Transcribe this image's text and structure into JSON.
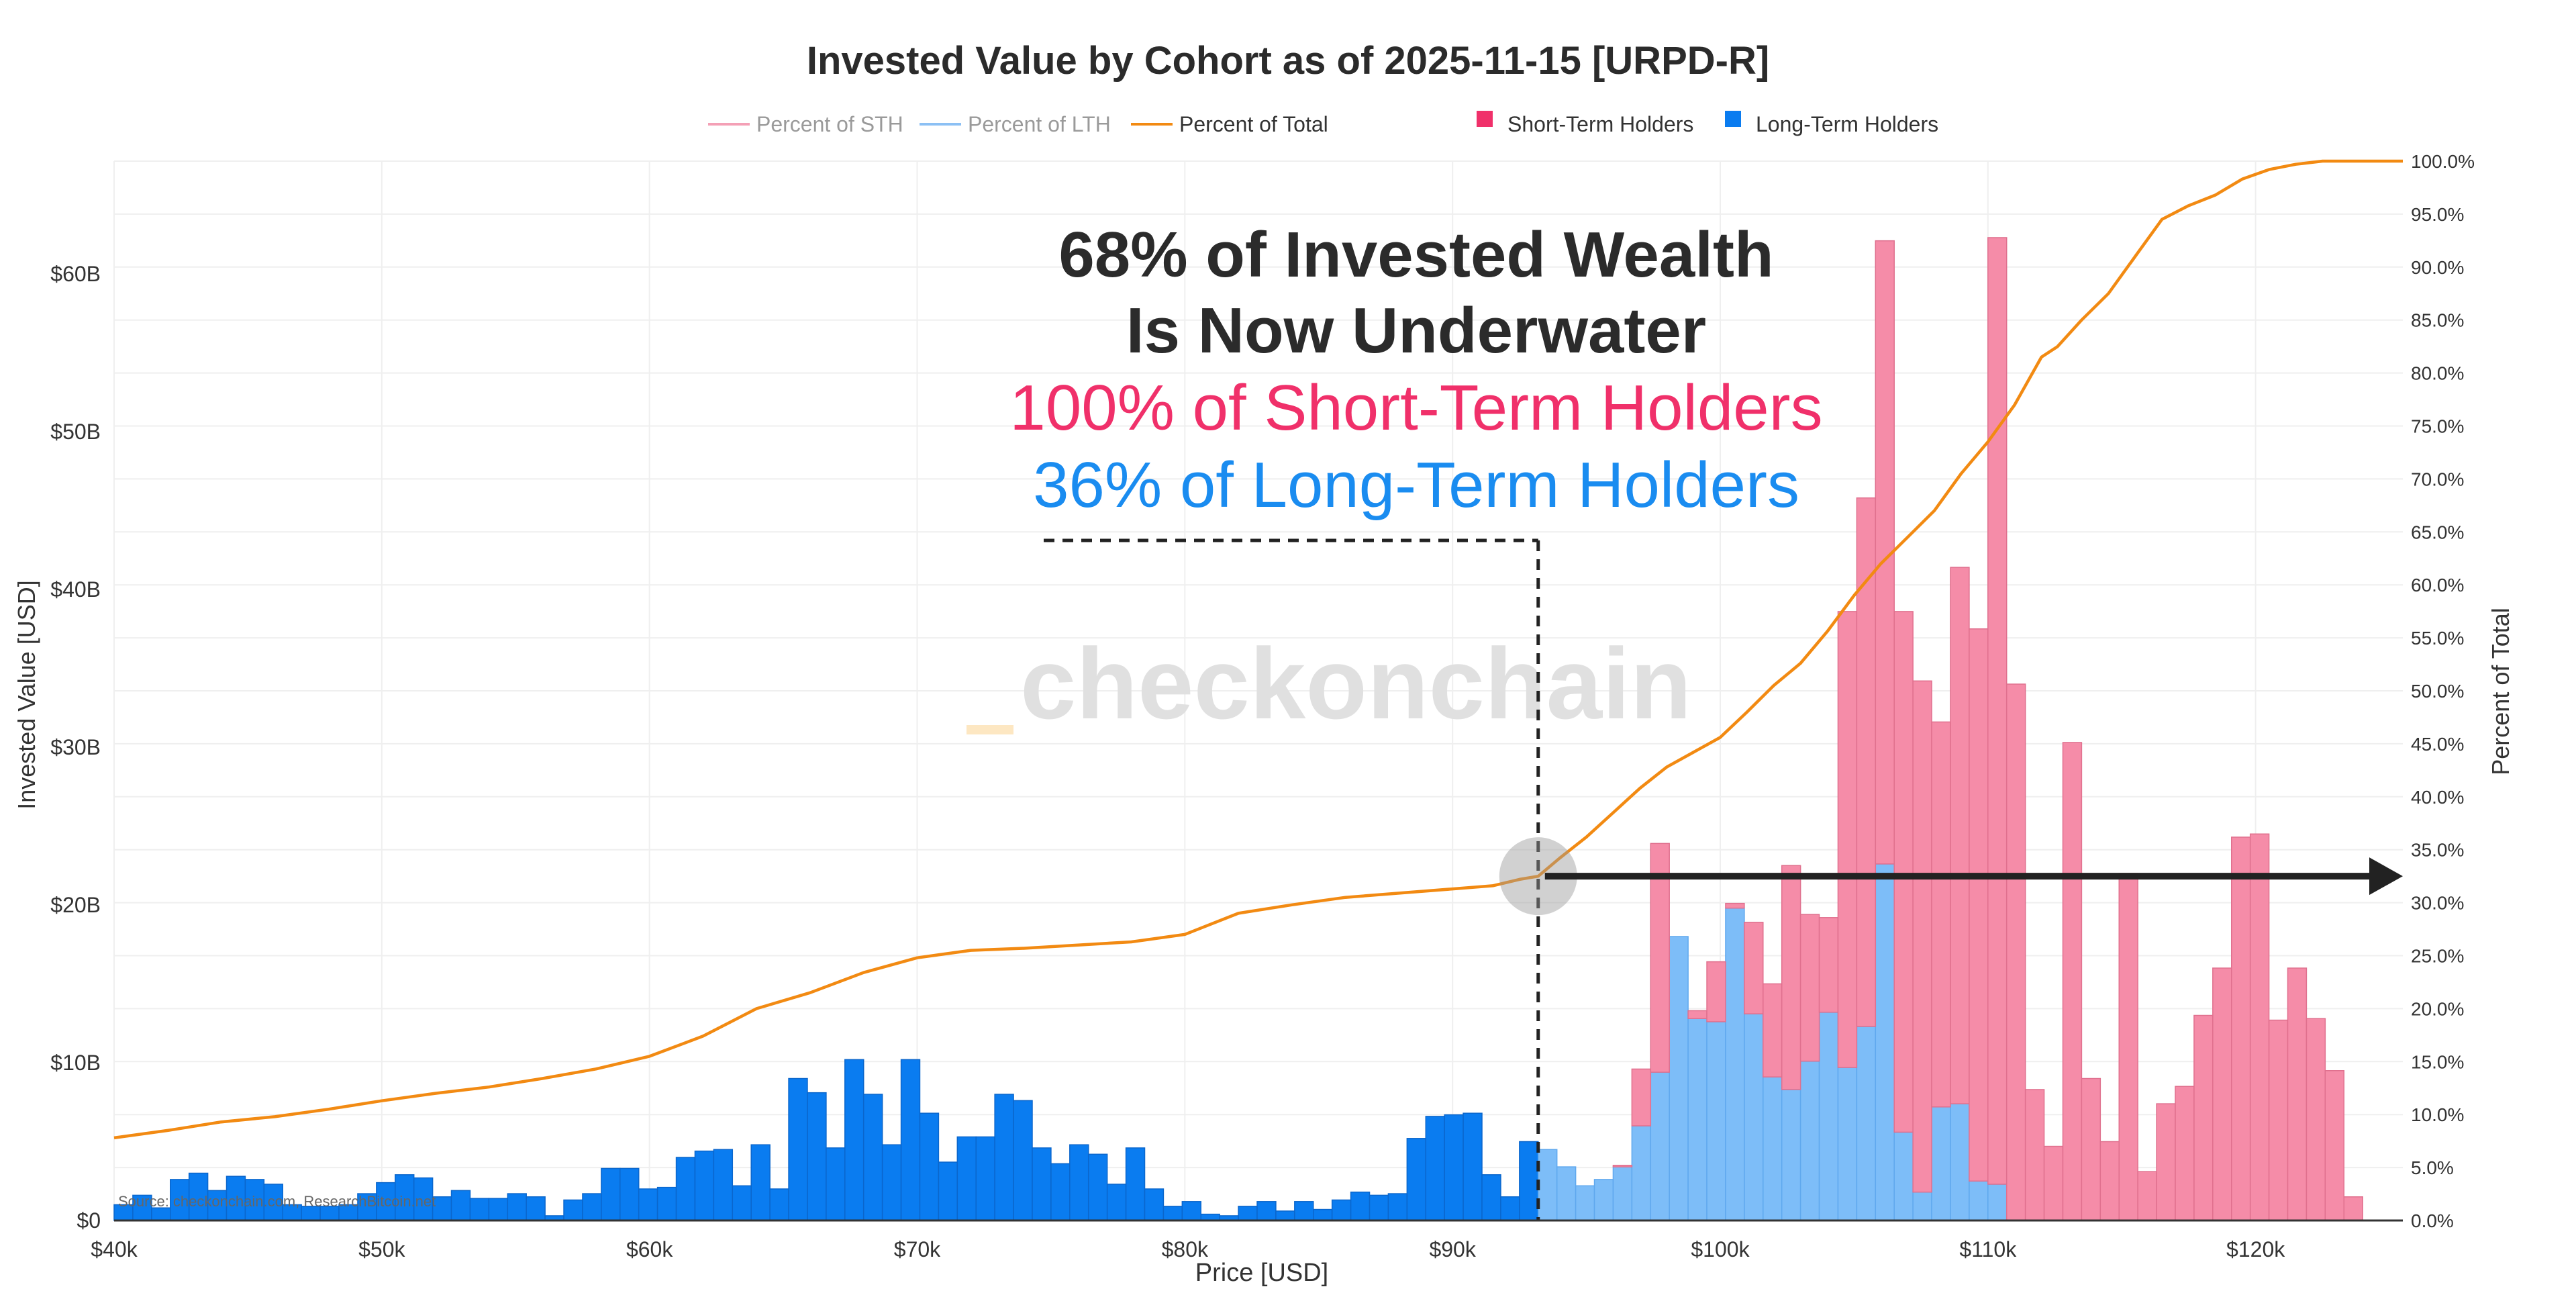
{
  "chart_data": {
    "type": "bar",
    "title": "Invested Value by Cohort as of 2025-11-15 [URPD-R]",
    "xlabel": "Price [USD]",
    "ylabel": "Invested Value [USD]",
    "y2label": "Percent of Total",
    "xlim": [
      40000,
      125500
    ],
    "ylim": [
      0,
      68
    ],
    "y2lim": [
      0,
      100
    ],
    "x_ticks": [
      40000,
      50000,
      60000,
      70000,
      80000,
      90000,
      100000,
      110000,
      120000
    ],
    "x_tick_labels": [
      "$40k",
      "$50k",
      "$60k",
      "$70k",
      "$80k",
      "$90k",
      "$100k",
      "$110k",
      "$120k"
    ],
    "y_ticks": [
      0,
      10,
      20,
      30,
      40,
      50,
      60
    ],
    "y_tick_labels": [
      "$0",
      "$10B",
      "$20B",
      "$30B",
      "$40B",
      "$50B",
      "$60B"
    ],
    "y2_ticks": [
      0,
      5,
      10,
      15,
      20,
      25,
      30,
      35,
      40,
      45,
      50,
      55,
      60,
      65,
      70,
      75,
      80,
      85,
      90,
      95,
      100
    ],
    "y2_tick_labels": [
      "0.0%",
      "5.0%",
      "10.0%",
      "15.0%",
      "20.0%",
      "25.0%",
      "30.0%",
      "35.0%",
      "40.0%",
      "45.0%",
      "50.0%",
      "55.0%",
      "60.0%",
      "65.0%",
      "70.0%",
      "75.0%",
      "80.0%",
      "85.0%",
      "90.0%",
      "95.0%",
      "100.0%"
    ],
    "bin_width": 700,
    "bins_start": 40000,
    "series": [
      {
        "name": "Long-Term Holders",
        "color": "#0a7cf0",
        "values": [
          1.0,
          1.6,
          0.8,
          2.6,
          3.0,
          1.9,
          2.8,
          2.6,
          2.3,
          1.0,
          0.9,
          0.9,
          1.0,
          1.7,
          2.4,
          2.9,
          2.7,
          1.5,
          1.9,
          1.4,
          1.4,
          1.7,
          1.5,
          0.3,
          1.3,
          1.7,
          3.3,
          3.3,
          2.0,
          2.1,
          4.0,
          4.4,
          4.5,
          2.2,
          4.8,
          2.0,
          9.0,
          8.1,
          4.6,
          10.2,
          8.0,
          4.8,
          10.2,
          6.8,
          3.7,
          5.3,
          5.3,
          8.0,
          7.6,
          4.6,
          3.6,
          4.8,
          4.2,
          2.3,
          4.6,
          2.0,
          0.9,
          1.2,
          0.4,
          0.3,
          0.9,
          1.2,
          0.6,
          1.2,
          0.7,
          1.3,
          1.8,
          1.6,
          1.7,
          5.2,
          6.6,
          6.7,
          6.8,
          2.9,
          1.5,
          5.0,
          4.5,
          3.4,
          2.2,
          2.6,
          3.4,
          6.0,
          9.4,
          18.0,
          12.8,
          12.6,
          19.8,
          13.1,
          9.1,
          8.3,
          10.1,
          13.2,
          9.7,
          12.3,
          22.6,
          5.6,
          1.8,
          7.2,
          7.4,
          2.5,
          2.3
        ],
        "x": [
          40000,
          40700,
          41400,
          42100,
          42800,
          43500,
          44200,
          44900,
          45600,
          46300,
          47000,
          47700,
          48400,
          49100,
          49800,
          50500,
          51200,
          51900,
          52600,
          53300,
          54000,
          54700,
          55400,
          56100,
          56800,
          57500,
          58200,
          58900,
          59600,
          60300,
          61000,
          61700,
          62400,
          63100,
          63800,
          64500,
          65200,
          65900,
          66600,
          67300,
          68000,
          68700,
          69400,
          70100,
          70800,
          71500,
          72200,
          72900,
          73600,
          74300,
          75000,
          75700,
          76400,
          77100,
          77800,
          78500,
          79200,
          79900,
          80600,
          81300,
          82000,
          82700,
          83400,
          84100,
          84800,
          85500,
          86200,
          86900,
          87600,
          88300,
          89000,
          89700,
          90400,
          91100,
          91800,
          92500,
          93200,
          93900,
          94600,
          95300,
          96000,
          96700,
          97400,
          98100,
          98800,
          99500,
          100200,
          100900,
          101600,
          102300,
          103000,
          103700,
          104400,
          105100,
          105800,
          106500,
          107200,
          107900,
          108600,
          109300,
          110000
        ]
      },
      {
        "name": "Short-Term Holders",
        "color": "#f03c78",
        "x": [
          93200,
          93900,
          94600,
          95300,
          96000,
          96700,
          97400,
          98100,
          98800,
          99500,
          100200,
          100900,
          101600,
          102300,
          103000,
          103700,
          104400,
          105100,
          105800,
          106500,
          107200,
          107900,
          108600,
          109300,
          110000,
          110700,
          111400,
          112100,
          112800,
          113500,
          114200,
          114900,
          115600,
          116300,
          117000,
          117700,
          118400,
          119100,
          119800,
          120500,
          121200,
          121900,
          122600,
          123300
        ],
        "values": [
          0,
          0,
          0,
          0,
          0.1,
          3.6,
          14.5,
          0,
          0.5,
          3.8,
          0.3,
          5.8,
          5.9,
          14.2,
          9.3,
          6.0,
          28.9,
          33.5,
          39.5,
          33.0,
          32.4,
          24.4,
          34.0,
          35.0,
          60.0,
          34.0,
          8.3,
          4.7,
          30.3,
          9.0,
          5.0,
          22.0,
          3.1,
          7.4,
          8.5,
          13.0,
          16.0,
          24.3,
          24.5,
          12.7,
          16.0,
          12.8,
          9.5,
          1.5
        ]
      },
      {
        "name": "Percent of Total",
        "color": "#f28a12",
        "x": [
          40000,
          42000,
          44000,
          46000,
          48000,
          50000,
          52000,
          54000,
          56000,
          58000,
          60000,
          62000,
          64000,
          66000,
          68000,
          70000,
          72000,
          74000,
          76000,
          78000,
          80000,
          82000,
          84000,
          86000,
          88000,
          90000,
          91500,
          92500,
          93200,
          94000,
          95000,
          96000,
          97000,
          98000,
          99000,
          100000,
          101000,
          102000,
          103000,
          104000,
          105000,
          106000,
          107000,
          108000,
          109000,
          110000,
          111000,
          112000,
          112600,
          113500,
          114500,
          115500,
          116500,
          117500,
          118500,
          119500,
          120500,
          121500,
          122500,
          123500,
          124500,
          125500
        ],
        "values": [
          7.8,
          8.5,
          9.3,
          9.8,
          10.5,
          11.3,
          12.0,
          12.6,
          13.4,
          14.3,
          15.5,
          17.4,
          20.0,
          21.5,
          23.4,
          24.8,
          25.5,
          25.7,
          26.0,
          26.3,
          27.0,
          29.0,
          29.8,
          30.5,
          30.9,
          31.3,
          31.6,
          32.2,
          32.5,
          34.2,
          36.2,
          38.5,
          40.8,
          42.8,
          44.2,
          45.6,
          48.0,
          50.5,
          52.6,
          55.6,
          59.0,
          62.0,
          64.5,
          67.0,
          70.5,
          73.5,
          77.0,
          81.5,
          82.5,
          85.0,
          87.5,
          91.0,
          94.5,
          95.8,
          96.8,
          98.3,
          99.2,
          99.7,
          100.0,
          100.0,
          100.0,
          100.0
        ]
      }
    ],
    "legend": [
      {
        "label": "Percent of STH",
        "kind": "line",
        "color": "#f4a0b6"
      },
      {
        "label": "Percent of LTH",
        "kind": "line",
        "color": "#8cc0f4"
      },
      {
        "label": "Percent of Total",
        "kind": "line",
        "color": "#f28a12"
      },
      {
        "label": "Short-Term Holders",
        "kind": "square",
        "color": "#f0306a"
      },
      {
        "label": "Long-Term Holders",
        "kind": "square",
        "color": "#0a7cf0"
      }
    ],
    "current_price": 93200,
    "current_price_pct": 32.5,
    "annotations": {
      "line1": "68% of Invested Wealth",
      "line2": "Is Now Underwater",
      "line3": "100% of Short-Term Holders",
      "line4": "36% of Long-Term Holders"
    },
    "watermark": "_checkonchain",
    "source": "Source: checkonchain.com, ResearchBitcoin.net"
  },
  "colors": {
    "lth": "#0a7cf0",
    "lth_light": "#7dbdf8",
    "sth": "#f58ca8",
    "sth_edge": "#e0708e",
    "line": "#f28a12",
    "ann_pink": "#f0306a",
    "ann_blue": "#1a8cf0"
  }
}
